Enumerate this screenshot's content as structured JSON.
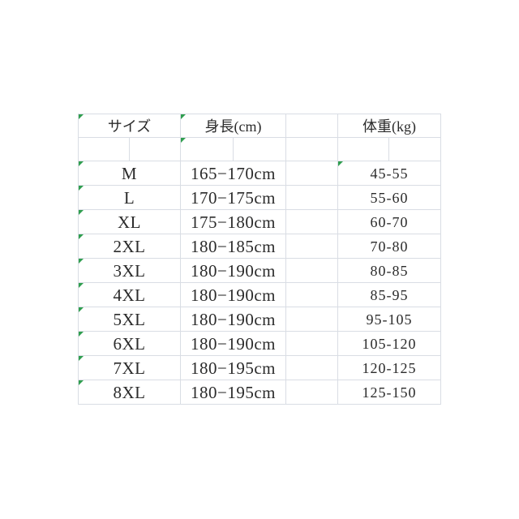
{
  "colors": {
    "background": "#ffffff",
    "grid_border": "#d9dde4",
    "text": "#2b2b2b",
    "corner_marker_green": "#2f9e4f"
  },
  "icons": {
    "corner_marker": "green triangle in top-left corner of cell"
  },
  "chart_data": {
    "type": "table",
    "columns": [
      "サイズ",
      "身長(cm)",
      "体重(kg)"
    ],
    "rows": [
      {
        "size": "M",
        "height": "165−170cm",
        "weight": "45-55"
      },
      {
        "size": "L",
        "height": "170−175cm",
        "weight": "55-60"
      },
      {
        "size": "XL",
        "height": "175−180cm",
        "weight": "60-70"
      },
      {
        "size": "2XL",
        "height": "180−185cm",
        "weight": "70-80"
      },
      {
        "size": "3XL",
        "height": "180−190cm",
        "weight": "80-85"
      },
      {
        "size": "4XL",
        "height": "180−190cm",
        "weight": "85-95"
      },
      {
        "size": "5XL",
        "height": "180−190cm",
        "weight": "95-105"
      },
      {
        "size": "6XL",
        "height": "180−190cm",
        "weight": "105-120"
      },
      {
        "size": "7XL",
        "height": "180−195cm",
        "weight": "120-125"
      },
      {
        "size": "8XL",
        "height": "180−195cm",
        "weight": "125-150"
      }
    ]
  },
  "markers": {
    "header_cells_with_marker": [
      0,
      1
    ],
    "spacer_subcell_with_marker": 2,
    "size_cell_marker_all_rows": true,
    "weight_cell_marker_rows": [
      0
    ]
  }
}
